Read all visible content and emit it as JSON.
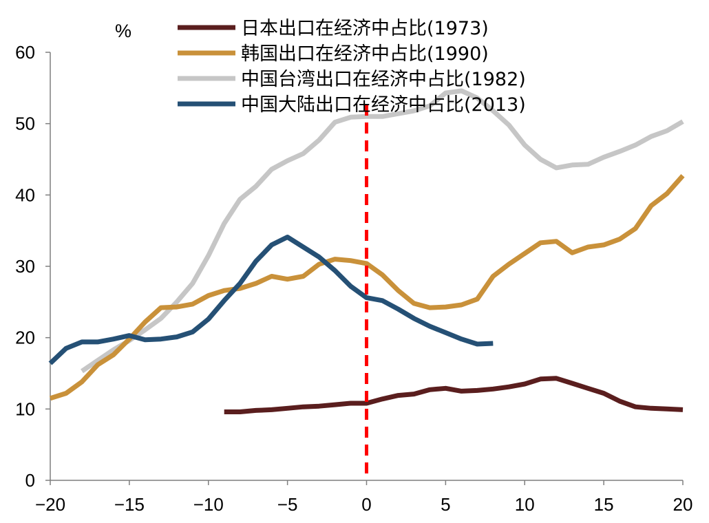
{
  "chart_data": {
    "type": "line",
    "unit_label": "%",
    "x_ticks": [
      "−20",
      "−15",
      "−10",
      "−5",
      "0",
      "5",
      "10",
      "15",
      "20"
    ],
    "y_ticks": [
      "0",
      "10",
      "20",
      "30",
      "40",
      "50",
      "60"
    ],
    "xlim": [
      -20,
      20
    ],
    "ylim": [
      0,
      60
    ],
    "reference_line_x": 0,
    "series": [
      {
        "name": "日本出口在经济中占比(1973)",
        "color": "#5a1e1e",
        "x": [
          -9,
          -8,
          -7,
          -6,
          -5,
          -4,
          -3,
          -2,
          -1,
          0,
          1,
          2,
          3,
          4,
          5,
          6,
          7,
          8,
          9,
          10,
          11,
          12,
          13,
          14,
          15,
          16,
          17,
          18,
          19,
          20
        ],
        "y": [
          9.6,
          9.6,
          9.8,
          9.9,
          10.1,
          10.3,
          10.4,
          10.6,
          10.8,
          10.8,
          11.4,
          11.9,
          12.1,
          12.7,
          12.9,
          12.5,
          12.6,
          12.8,
          13.1,
          13.5,
          14.2,
          14.3,
          13.6,
          12.9,
          12.2,
          11.1,
          10.3,
          10.1,
          10.0,
          9.9
        ]
      },
      {
        "name": "韩国出口在经济中占比(1990)",
        "color": "#c9913a",
        "x": [
          -20,
          -19,
          -18,
          -17,
          -16,
          -15,
          -14,
          -13,
          -12,
          -11,
          -10,
          -9,
          -8,
          -7,
          -6,
          -5,
          -4,
          -3,
          -2,
          -1,
          0,
          1,
          2,
          3,
          4,
          5,
          6,
          7,
          8,
          9,
          10,
          11,
          12,
          13,
          14,
          15,
          16,
          17,
          18,
          19,
          20
        ],
        "y": [
          11.5,
          12.2,
          13.8,
          16.2,
          17.6,
          19.8,
          22.2,
          24.2,
          24.3,
          24.7,
          25.9,
          26.6,
          26.9,
          27.6,
          28.6,
          28.2,
          28.6,
          30.3,
          31.0,
          30.8,
          30.4,
          28.8,
          26.6,
          24.8,
          24.2,
          24.3,
          24.6,
          25.4,
          28.6,
          30.3,
          31.8,
          33.3,
          33.5,
          31.9,
          32.7,
          33.0,
          33.8,
          35.3,
          38.5,
          40.2,
          42.7
        ]
      },
      {
        "name": "中国台湾出口在经济中占比(1982)",
        "color": "#c6c6c6",
        "x": [
          -18,
          -17,
          -16,
          -15,
          -14,
          -13,
          -12,
          -11,
          -10,
          -9,
          -8,
          -7,
          -6,
          -5,
          -4,
          -3,
          -2,
          -1,
          0,
          1,
          2,
          3,
          4,
          5,
          6,
          7,
          8,
          9,
          10,
          11,
          12,
          13,
          14,
          15,
          16,
          17,
          18,
          19,
          20
        ],
        "y": [
          15.3,
          16.8,
          18.3,
          19.6,
          21.1,
          22.7,
          25.0,
          27.6,
          31.5,
          36.0,
          39.4,
          41.2,
          43.6,
          44.8,
          45.8,
          47.7,
          50.2,
          50.9,
          51.0,
          51.0,
          51.4,
          51.8,
          52.5,
          54.3,
          54.6,
          53.6,
          51.8,
          49.8,
          47.0,
          45.0,
          43.8,
          44.2,
          44.3,
          45.3,
          46.1,
          47.0,
          48.2,
          49.0,
          50.3
        ]
      },
      {
        "name": "中国大陆出口在经济中占比(2013)",
        "color": "#255075",
        "x": [
          -20,
          -19,
          -18,
          -17,
          -16,
          -15,
          -14,
          -13,
          -12,
          -11,
          -10,
          -9,
          -8,
          -7,
          -6,
          -5,
          -4,
          -3,
          -2,
          -1,
          0,
          1,
          2,
          3,
          4,
          5,
          6,
          7,
          8
        ],
        "y": [
          16.4,
          18.5,
          19.4,
          19.4,
          19.8,
          20.3,
          19.7,
          19.8,
          20.1,
          20.8,
          22.6,
          25.2,
          27.6,
          30.7,
          33.0,
          34.1,
          32.7,
          31.3,
          29.4,
          27.2,
          25.6,
          25.2,
          24.0,
          22.7,
          21.6,
          20.7,
          19.8,
          19.1,
          19.2
        ]
      }
    ]
  }
}
